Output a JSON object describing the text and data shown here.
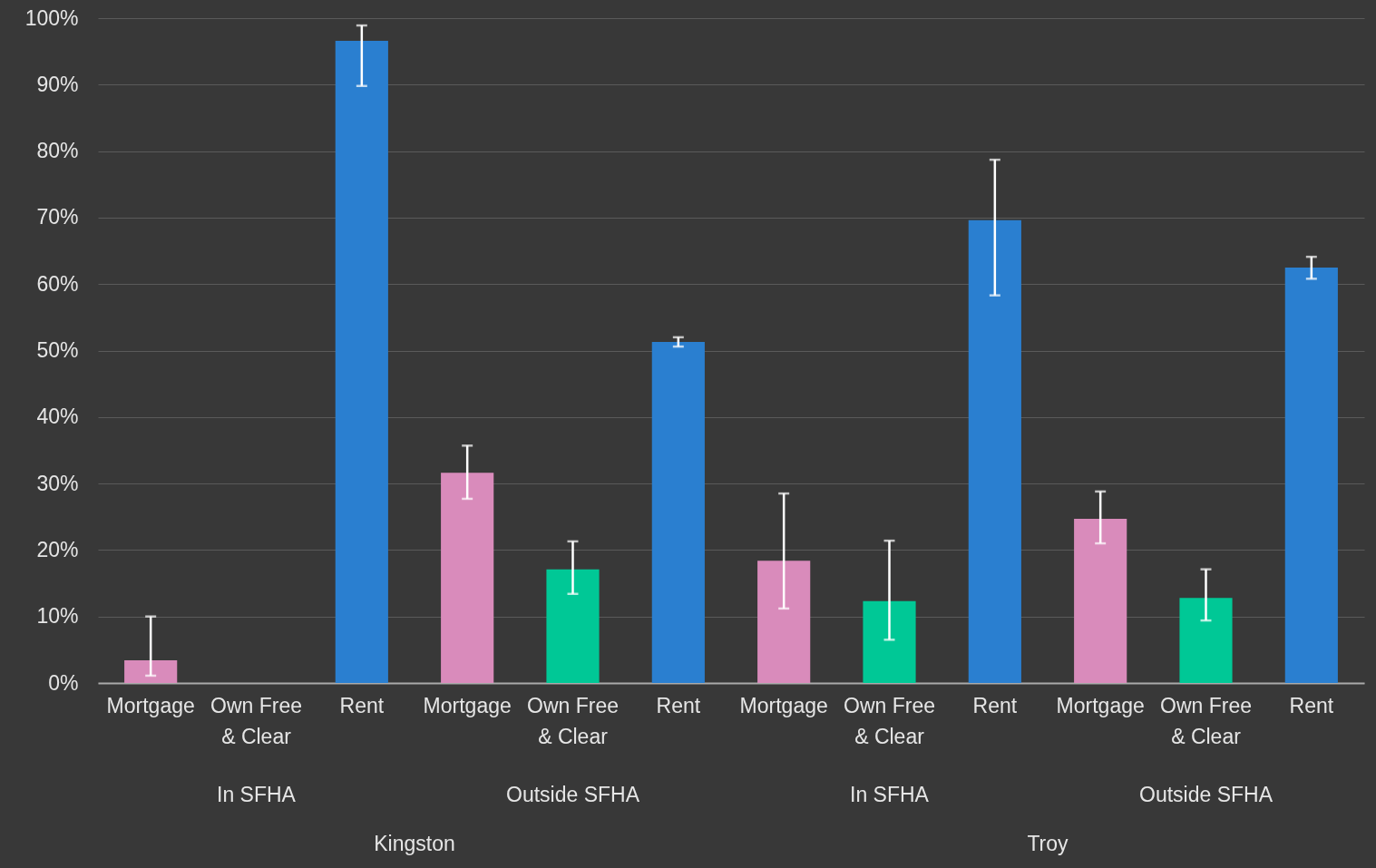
{
  "chart_data": {
    "type": "bar",
    "categories": [
      "Mortgage",
      "Own Free & Clear",
      "Rent",
      "Mortgage",
      "Own Free & Clear",
      "Rent",
      "Mortgage",
      "Own Free & Clear",
      "Rent",
      "Mortgage",
      "Own Free & Clear",
      "Rent"
    ],
    "values": [
      3.4,
      0,
      96.6,
      31.6,
      17.1,
      51.3,
      18.4,
      12.3,
      69.6,
      24.7,
      12.8,
      62.5
    ],
    "colors": [
      "#d98bbb",
      "#00c896",
      "#2a7fd0",
      "#d98bbb",
      "#00c896",
      "#2a7fd0",
      "#d98bbb",
      "#00c896",
      "#2a7fd0",
      "#d98bbb",
      "#00c896",
      "#2a7fd0"
    ],
    "errors": [
      [
        1.1,
        10.0
      ],
      null,
      [
        89.8,
        98.9
      ],
      [
        27.7,
        35.7
      ],
      [
        13.4,
        21.3
      ],
      [
        50.6,
        52.0
      ],
      [
        11.2,
        28.5
      ],
      [
        6.5,
        21.4
      ],
      [
        58.3,
        78.7
      ],
      [
        21.0,
        28.8
      ],
      [
        9.4,
        17.1
      ],
      [
        60.8,
        64.1
      ]
    ],
    "ylim": [
      0,
      100
    ],
    "yticks": [
      {
        "value": 0,
        "label": "0%"
      },
      {
        "value": 10,
        "label": "10%"
      },
      {
        "value": 20,
        "label": "20%"
      },
      {
        "value": 30,
        "label": "30%"
      },
      {
        "value": 40,
        "label": "40%"
      },
      {
        "value": 50,
        "label": "50%"
      },
      {
        "value": 60,
        "label": "60%"
      },
      {
        "value": 70,
        "label": "70%"
      },
      {
        "value": 80,
        "label": "80%"
      },
      {
        "value": 90,
        "label": "90%"
      },
      {
        "value": 100,
        "label": "100%"
      }
    ],
    "grid": "y",
    "annotations": [
      "In SFHA",
      "Outside SFHA",
      "In SFHA",
      "Outside SFHA",
      "Kingston",
      "Troy"
    ]
  }
}
